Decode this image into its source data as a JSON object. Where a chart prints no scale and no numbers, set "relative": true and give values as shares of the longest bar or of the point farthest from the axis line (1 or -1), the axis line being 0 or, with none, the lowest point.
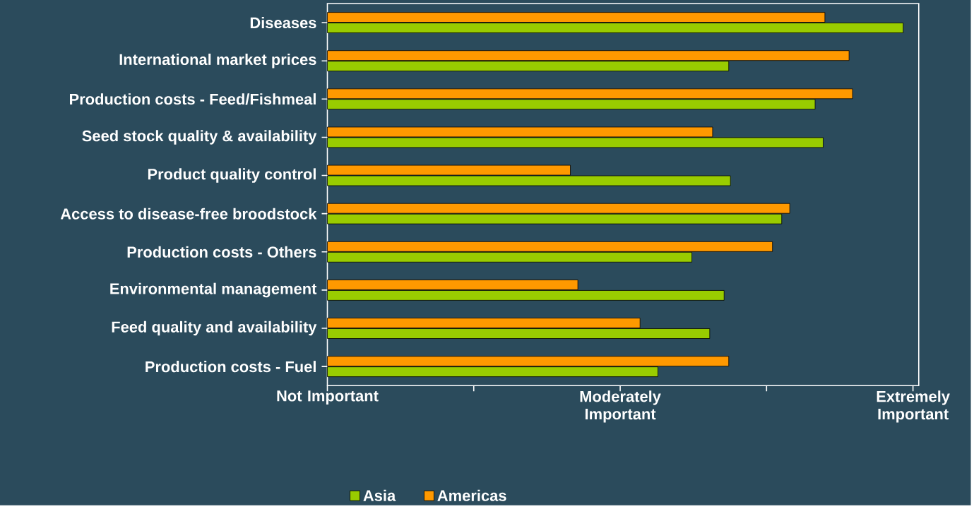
{
  "chart_data": {
    "type": "bar",
    "orientation": "horizontal",
    "relative": true,
    "categories": [
      "Diseases",
      "International market prices",
      "Production costs - Feed/Fishmeal",
      "Seed stock quality & availability",
      "Product quality control",
      "Access to disease-free broodstock",
      "Production costs - Others",
      "Environmental management",
      "Feed quality and availability",
      "Production costs - Fuel"
    ],
    "series": [
      {
        "name": "Asia",
        "color": "#99cc00",
        "values": [
          1,
          0.697,
          0.847,
          0.861,
          0.7,
          0.789,
          0.633,
          0.689,
          0.664,
          0.574
        ]
      },
      {
        "name": "Americas",
        "color": "#ff9900",
        "values": [
          0.864,
          0.906,
          0.912,
          0.669,
          0.422,
          0.803,
          0.773,
          0.435,
          0.543,
          0.697
        ]
      }
    ],
    "annotations": [
      "Not Important",
      "Moderately Important",
      "Extremely Important"
    ],
    "grid": false,
    "legend": "bottom"
  }
}
